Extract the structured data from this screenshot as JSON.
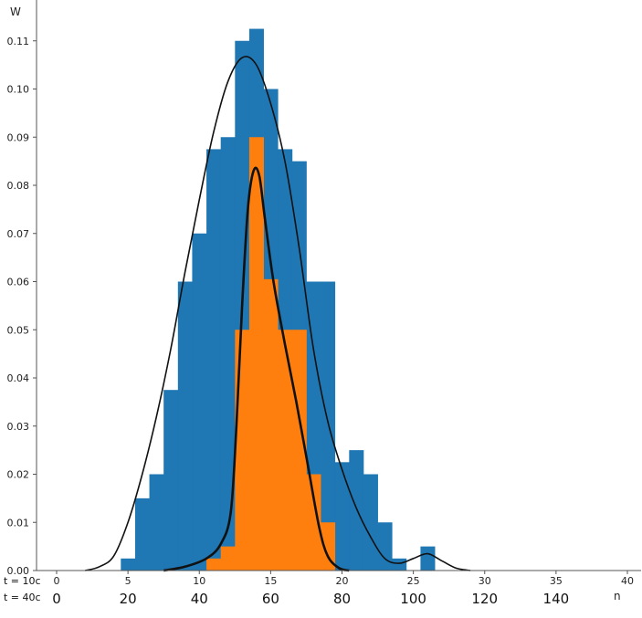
{
  "chart_data": {
    "type": "bar",
    "ylabel": "W",
    "xlabel": "n",
    "ylim": [
      0,
      0.118
    ],
    "grid": false,
    "yticks": [
      "0.00",
      "0.01",
      "0.02",
      "0.03",
      "0.04",
      "0.05",
      "0.06",
      "0.07",
      "0.08",
      "0.09",
      "0.10",
      "0.11"
    ],
    "x_rows": [
      {
        "label": "t = 10c",
        "range": [
          0,
          40
        ],
        "ticks": [
          "0",
          "5",
          "10",
          "15",
          "20",
          "25",
          "30",
          "35",
          "40"
        ]
      },
      {
        "label": "t = 40c",
        "range": [
          0,
          160
        ],
        "ticks": [
          "0",
          "20",
          "40",
          "60",
          "80",
          "100",
          "120",
          "140"
        ]
      }
    ],
    "series": [
      {
        "color": "#1f77b4",
        "bin_width": 1,
        "bins": [
          {
            "x": 4.5,
            "y": 0.0025
          },
          {
            "x": 5.5,
            "y": 0.015
          },
          {
            "x": 6.5,
            "y": 0.02
          },
          {
            "x": 7.5,
            "y": 0.0375
          },
          {
            "x": 8.5,
            "y": 0.06
          },
          {
            "x": 9.5,
            "y": 0.07
          },
          {
            "x": 10.5,
            "y": 0.0875
          },
          {
            "x": 11.5,
            "y": 0.09
          },
          {
            "x": 12.5,
            "y": 0.11
          },
          {
            "x": 13.5,
            "y": 0.1125
          },
          {
            "x": 14.5,
            "y": 0.1
          },
          {
            "x": 15.5,
            "y": 0.0875
          },
          {
            "x": 16.5,
            "y": 0.085
          },
          {
            "x": 17.5,
            "y": 0.06
          },
          {
            "x": 18.5,
            "y": 0.06
          },
          {
            "x": 19.5,
            "y": 0.0225
          },
          {
            "x": 20.5,
            "y": 0.025
          },
          {
            "x": 21.5,
            "y": 0.02
          },
          {
            "x": 22.5,
            "y": 0.01
          },
          {
            "x": 23.5,
            "y": 0.0025
          },
          {
            "x": 25.5,
            "y": 0.005
          }
        ],
        "kde": [
          [
            2,
            0.0
          ],
          [
            3,
            0.0008
          ],
          [
            4,
            0.003
          ],
          [
            5,
            0.01
          ],
          [
            6,
            0.02
          ],
          [
            7,
            0.032
          ],
          [
            8,
            0.046
          ],
          [
            9,
            0.062
          ],
          [
            10,
            0.077
          ],
          [
            11,
            0.091
          ],
          [
            12,
            0.1015
          ],
          [
            13,
            0.1065
          ],
          [
            14,
            0.105
          ],
          [
            15,
            0.097
          ],
          [
            16,
            0.085
          ],
          [
            17,
            0.067
          ],
          [
            18,
            0.046
          ],
          [
            19,
            0.031
          ],
          [
            20,
            0.021
          ],
          [
            21,
            0.013
          ],
          [
            22,
            0.007
          ],
          [
            23,
            0.0025
          ],
          [
            24,
            0.0015
          ],
          [
            25,
            0.0025
          ],
          [
            26,
            0.0035
          ],
          [
            27,
            0.002
          ],
          [
            28,
            0.0005
          ],
          [
            29,
            0.0
          ]
        ]
      },
      {
        "color": "#ff7f0e",
        "bin_width": 1,
        "bins": [
          {
            "x": 10.5,
            "y": 0.0025
          },
          {
            "x": 11.5,
            "y": 0.005
          },
          {
            "x": 12.5,
            "y": 0.05
          },
          {
            "x": 13.5,
            "y": 0.09
          },
          {
            "x": 14.5,
            "y": 0.0605
          },
          {
            "x": 15.5,
            "y": 0.05
          },
          {
            "x": 16.5,
            "y": 0.05
          },
          {
            "x": 17.5,
            "y": 0.02
          },
          {
            "x": 18.5,
            "y": 0.01
          }
        ],
        "kde": [
          [
            7.5,
            0.0
          ],
          [
            9,
            0.0008
          ],
          [
            10.5,
            0.0025
          ],
          [
            11.5,
            0.0055
          ],
          [
            12.2,
            0.012
          ],
          [
            12.6,
            0.03
          ],
          [
            13.0,
            0.055
          ],
          [
            13.4,
            0.075
          ],
          [
            13.8,
            0.083
          ],
          [
            14.2,
            0.082
          ],
          [
            14.6,
            0.073
          ],
          [
            15.2,
            0.06
          ],
          [
            16,
            0.047
          ],
          [
            16.8,
            0.035
          ],
          [
            17.6,
            0.022
          ],
          [
            18.4,
            0.009
          ],
          [
            19,
            0.003
          ],
          [
            19.8,
            0.0005
          ],
          [
            20.5,
            0.0
          ]
        ]
      }
    ]
  }
}
